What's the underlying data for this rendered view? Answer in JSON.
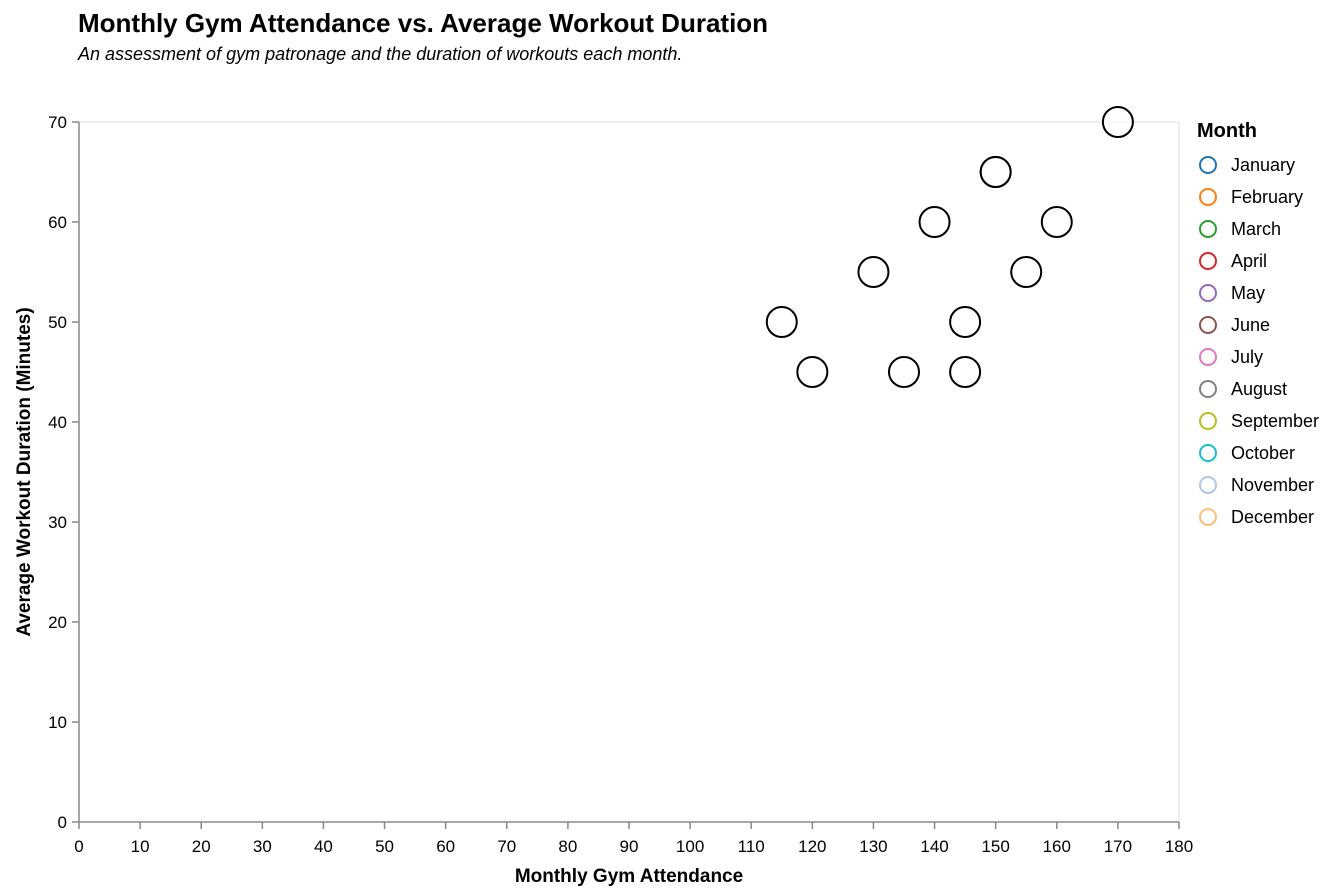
{
  "chart_data": {
    "type": "scatter",
    "title": "Monthly Gym Attendance vs. Average Workout Duration",
    "subtitle": "An assessment of gym patronage and the duration of workouts each month.",
    "xlabel": "Monthly Gym Attendance",
    "ylabel": "Average Workout Duration (Minutes)",
    "xlim": [
      0,
      180
    ],
    "ylim": [
      0,
      70
    ],
    "x_ticks": [
      0,
      10,
      20,
      30,
      40,
      50,
      60,
      70,
      80,
      90,
      100,
      110,
      120,
      130,
      140,
      150,
      160,
      170,
      180
    ],
    "y_ticks": [
      0,
      10,
      20,
      30,
      40,
      50,
      60,
      70
    ],
    "grid": false,
    "legend": {
      "title": "Month",
      "placement": "right",
      "entries": [
        {
          "label": "January",
          "color": "#1f77b4"
        },
        {
          "label": "February",
          "color": "#ff7f0e"
        },
        {
          "label": "March",
          "color": "#2ca02c"
        },
        {
          "label": "April",
          "color": "#d62728"
        },
        {
          "label": "May",
          "color": "#9467bd"
        },
        {
          "label": "June",
          "color": "#8c564b"
        },
        {
          "label": "July",
          "color": "#e377c2"
        },
        {
          "label": "August",
          "color": "#7f7f7f"
        },
        {
          "label": "September",
          "color": "#bcbd22"
        },
        {
          "label": "October",
          "color": "#17becf"
        },
        {
          "label": "November",
          "color": "#aec7e8"
        },
        {
          "label": "December",
          "color": "#ffbb78"
        }
      ]
    },
    "marker_stroke": "#000000",
    "points": [
      {
        "x": 115,
        "y": 50
      },
      {
        "x": 120,
        "y": 45
      },
      {
        "x": 130,
        "y": 55
      },
      {
        "x": 135,
        "y": 45
      },
      {
        "x": 140,
        "y": 60
      },
      {
        "x": 145,
        "y": 50
      },
      {
        "x": 145,
        "y": 45
      },
      {
        "x": 150,
        "y": 65
      },
      {
        "x": 150,
        "y": 65
      },
      {
        "x": 155,
        "y": 55
      },
      {
        "x": 160,
        "y": 60
      },
      {
        "x": 170,
        "y": 70
      }
    ]
  }
}
